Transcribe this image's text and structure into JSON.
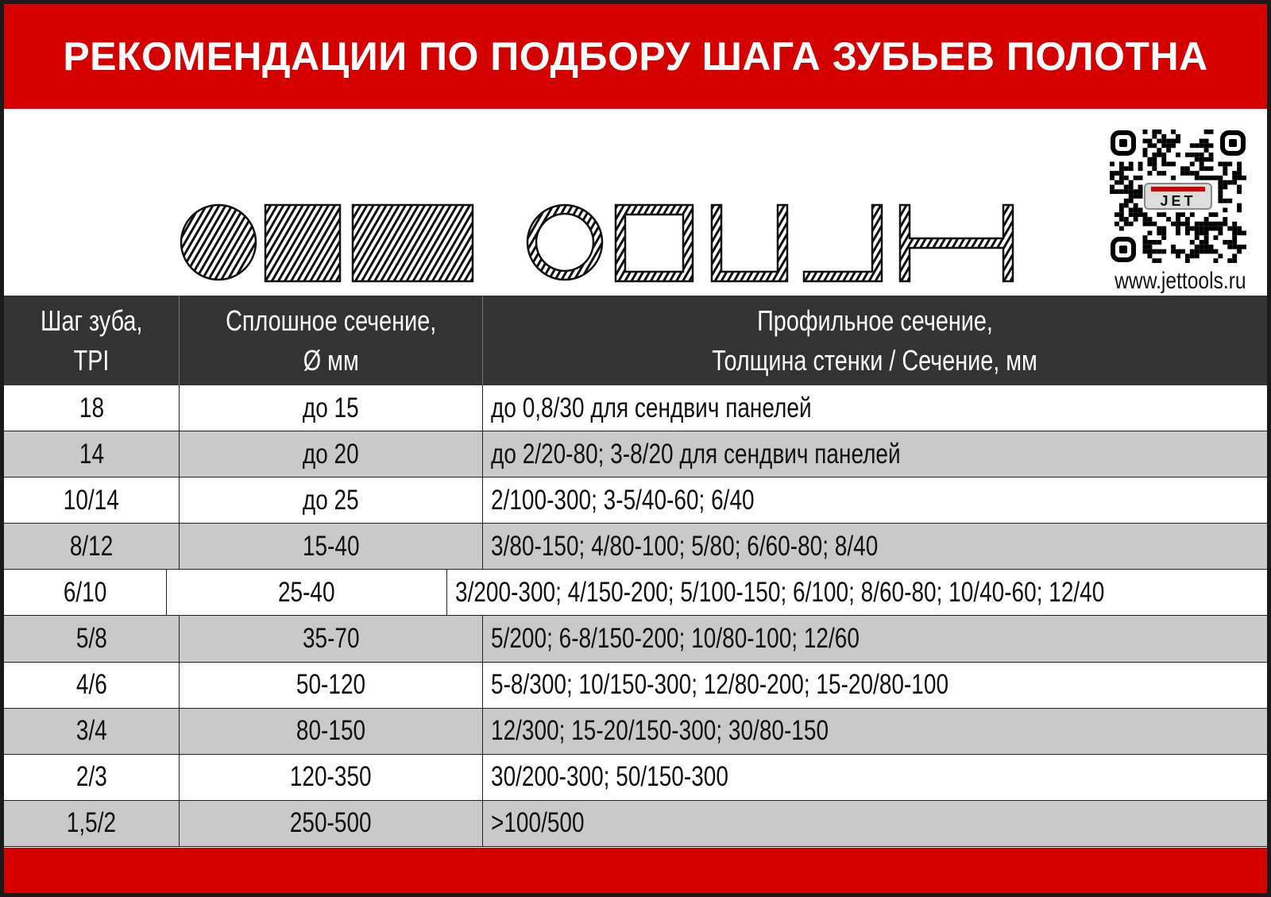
{
  "title": "РЕКОМЕНДАЦИИ ПО ПОДБОРУ ШАГА ЗУБЬЕВ ПОЛОТНА",
  "website": "www.jettools.ru",
  "logo": "JET",
  "colors": {
    "accent_red": "#d40000",
    "header_dark": "#333333",
    "row_alt": "#c9c9c9"
  },
  "shapes": [
    "solid-round",
    "solid-square",
    "solid-rectangle",
    "round-tube",
    "square-tube",
    "u-channel",
    "angle",
    "h-beam"
  ],
  "table": {
    "headers": [
      {
        "line1": "Шаг зуба,",
        "line2": "TPI"
      },
      {
        "line1": "Сплошное сечение,",
        "line2": "Ø мм"
      },
      {
        "line1": "Профильное сечение,",
        "line2": "Толщина стенки / Сечение, мм"
      }
    ],
    "rows": [
      [
        "18",
        "до 15",
        "до 0,8/30 для сендвич панелей"
      ],
      [
        "14",
        "до 20",
        "до 2/20-80; 3-8/20 для сендвич панелей"
      ],
      [
        "10/14",
        "до 25",
        "2/100-300; 3-5/40-60;  6/40"
      ],
      [
        "8/12",
        "15-40",
        "3/80-150; 4/80-100; 5/80; 6/60-80; 8/40"
      ],
      [
        "6/10",
        "25-40",
        "3/200-300; 4/150-200; 5/100-150; 6/100; 8/60-80; 10/40-60; 12/40"
      ],
      [
        "5/8",
        "35-70",
        "5/200; 6-8/150-200; 10/80-100; 12/60"
      ],
      [
        "4/6",
        "50-120",
        "5-8/300; 10/150-300; 12/80-200; 15-20/80-100"
      ],
      [
        "3/4",
        "80-150",
        "12/300; 15-20/150-300; 30/80-150"
      ],
      [
        "2/3",
        "120-350",
        "30/200-300; 50/150-300"
      ],
      [
        "1,5/2",
        "250-500",
        ">100/500"
      ]
    ]
  }
}
